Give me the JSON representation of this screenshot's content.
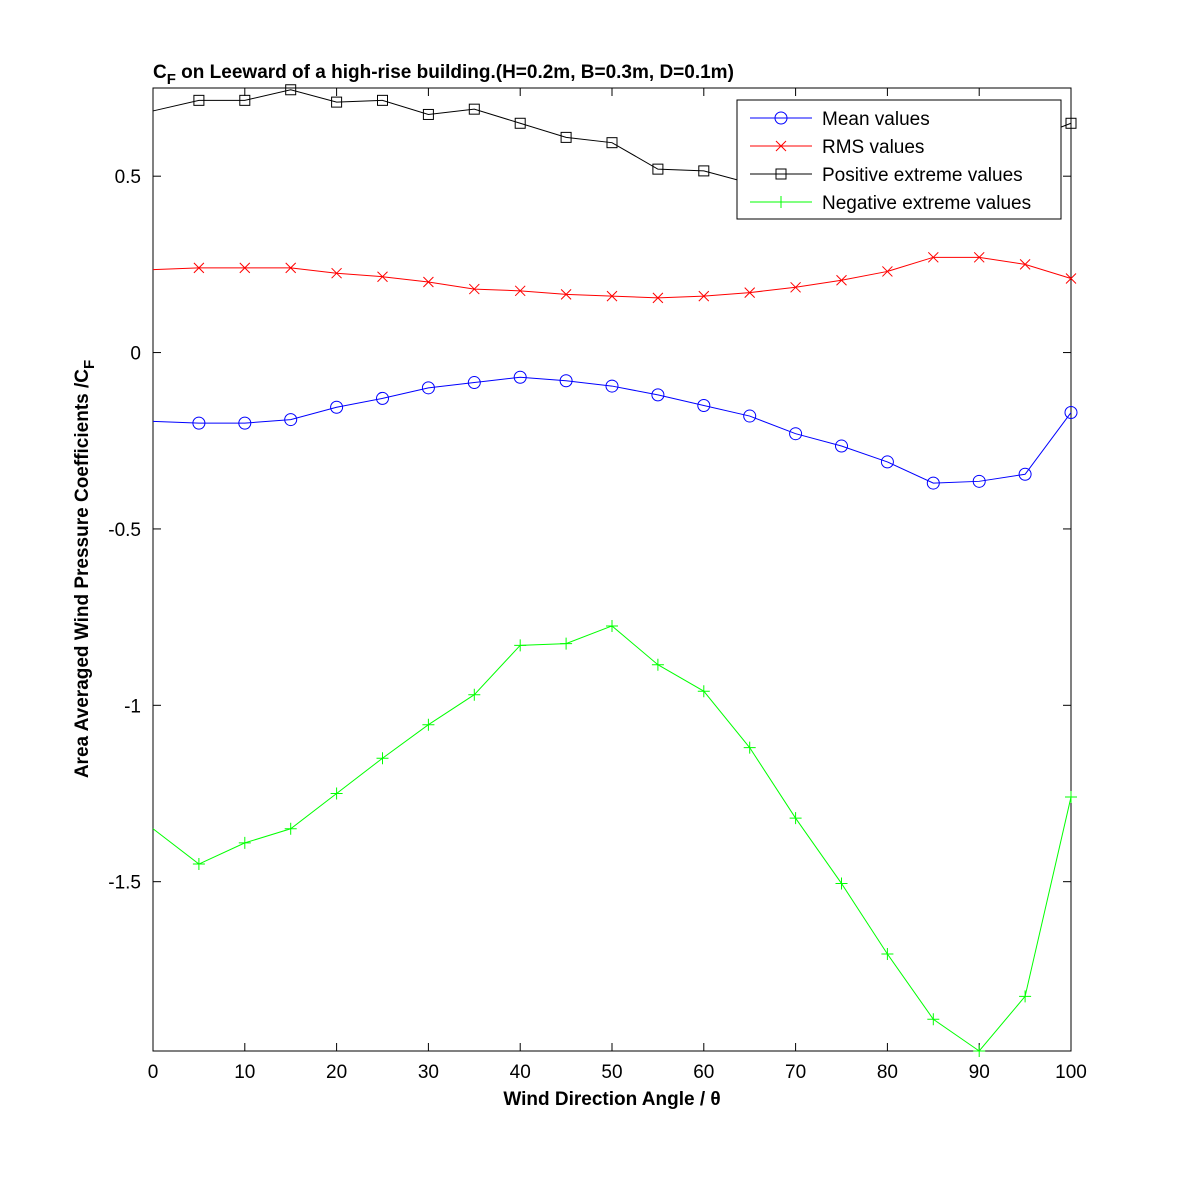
{
  "chart_data": {
    "type": "line",
    "title": {
      "main": "C",
      "sub": "F",
      "rest": " on Leeward of a high-rise building.(H=0.2m, B=0.3m, D=0.1m)"
    },
    "xlabel": "Wind Direction Angle  / θ",
    "ylabel": {
      "main": "Area Averaged Wind Pressure Coefficients /C",
      "sub": "F"
    },
    "xlim": [
      0,
      100
    ],
    "ylim": [
      -1.98,
      0.75
    ],
    "xticks": [
      0,
      10,
      20,
      30,
      40,
      50,
      60,
      70,
      80,
      90,
      100
    ],
    "yticks": [
      -1.5,
      -1,
      -0.5,
      0,
      0.5
    ],
    "xtick_labels": [
      "0",
      "10",
      "20",
      "30",
      "40",
      "50",
      "60",
      "70",
      "80",
      "90",
      "100"
    ],
    "ytick_labels": [
      "-1.5",
      "-1",
      "-0.5",
      "0",
      "0.5"
    ],
    "grid": false,
    "legend_position": "top-right",
    "x": [
      0,
      5,
      10,
      15,
      20,
      25,
      30,
      35,
      40,
      45,
      50,
      55,
      60,
      65,
      70,
      75,
      80,
      85,
      90,
      95,
      100
    ],
    "series": [
      {
        "name": "Mean values",
        "color": "#0000ff",
        "marker": "circle",
        "values": [
          -0.195,
          -0.2,
          -0.2,
          -0.19,
          -0.155,
          -0.13,
          -0.1,
          -0.085,
          -0.07,
          -0.08,
          -0.095,
          -0.12,
          -0.15,
          -0.18,
          -0.23,
          -0.265,
          -0.31,
          -0.37,
          -0.365,
          -0.345,
          -0.17
        ]
      },
      {
        "name": "RMS values",
        "color": "#ff0000",
        "marker": "x",
        "values": [
          0.235,
          0.24,
          0.24,
          0.24,
          0.225,
          0.215,
          0.2,
          0.18,
          0.175,
          0.165,
          0.16,
          0.155,
          0.16,
          0.17,
          0.185,
          0.205,
          0.23,
          0.27,
          0.27,
          0.25,
          0.21
        ]
      },
      {
        "name": "Positive extreme values",
        "color": "#000000",
        "marker": "square",
        "values": [
          0.685,
          0.715,
          0.715,
          0.745,
          0.71,
          0.715,
          0.675,
          0.69,
          0.65,
          0.61,
          0.595,
          0.52,
          0.515,
          0.48,
          0.48,
          0.48,
          0.49,
          0.52,
          0.56,
          0.6,
          0.65
        ]
      },
      {
        "name": "Negative extreme values",
        "color": "#00ff00",
        "marker": "plus",
        "values": [
          -1.35,
          -1.45,
          -1.39,
          -1.35,
          -1.25,
          -1.15,
          -1.055,
          -0.97,
          -0.83,
          -0.825,
          -0.775,
          -0.885,
          -0.96,
          -1.12,
          -1.32,
          -1.505,
          -1.705,
          -1.89,
          -1.98,
          -1.825,
          -1.26
        ]
      }
    ]
  }
}
